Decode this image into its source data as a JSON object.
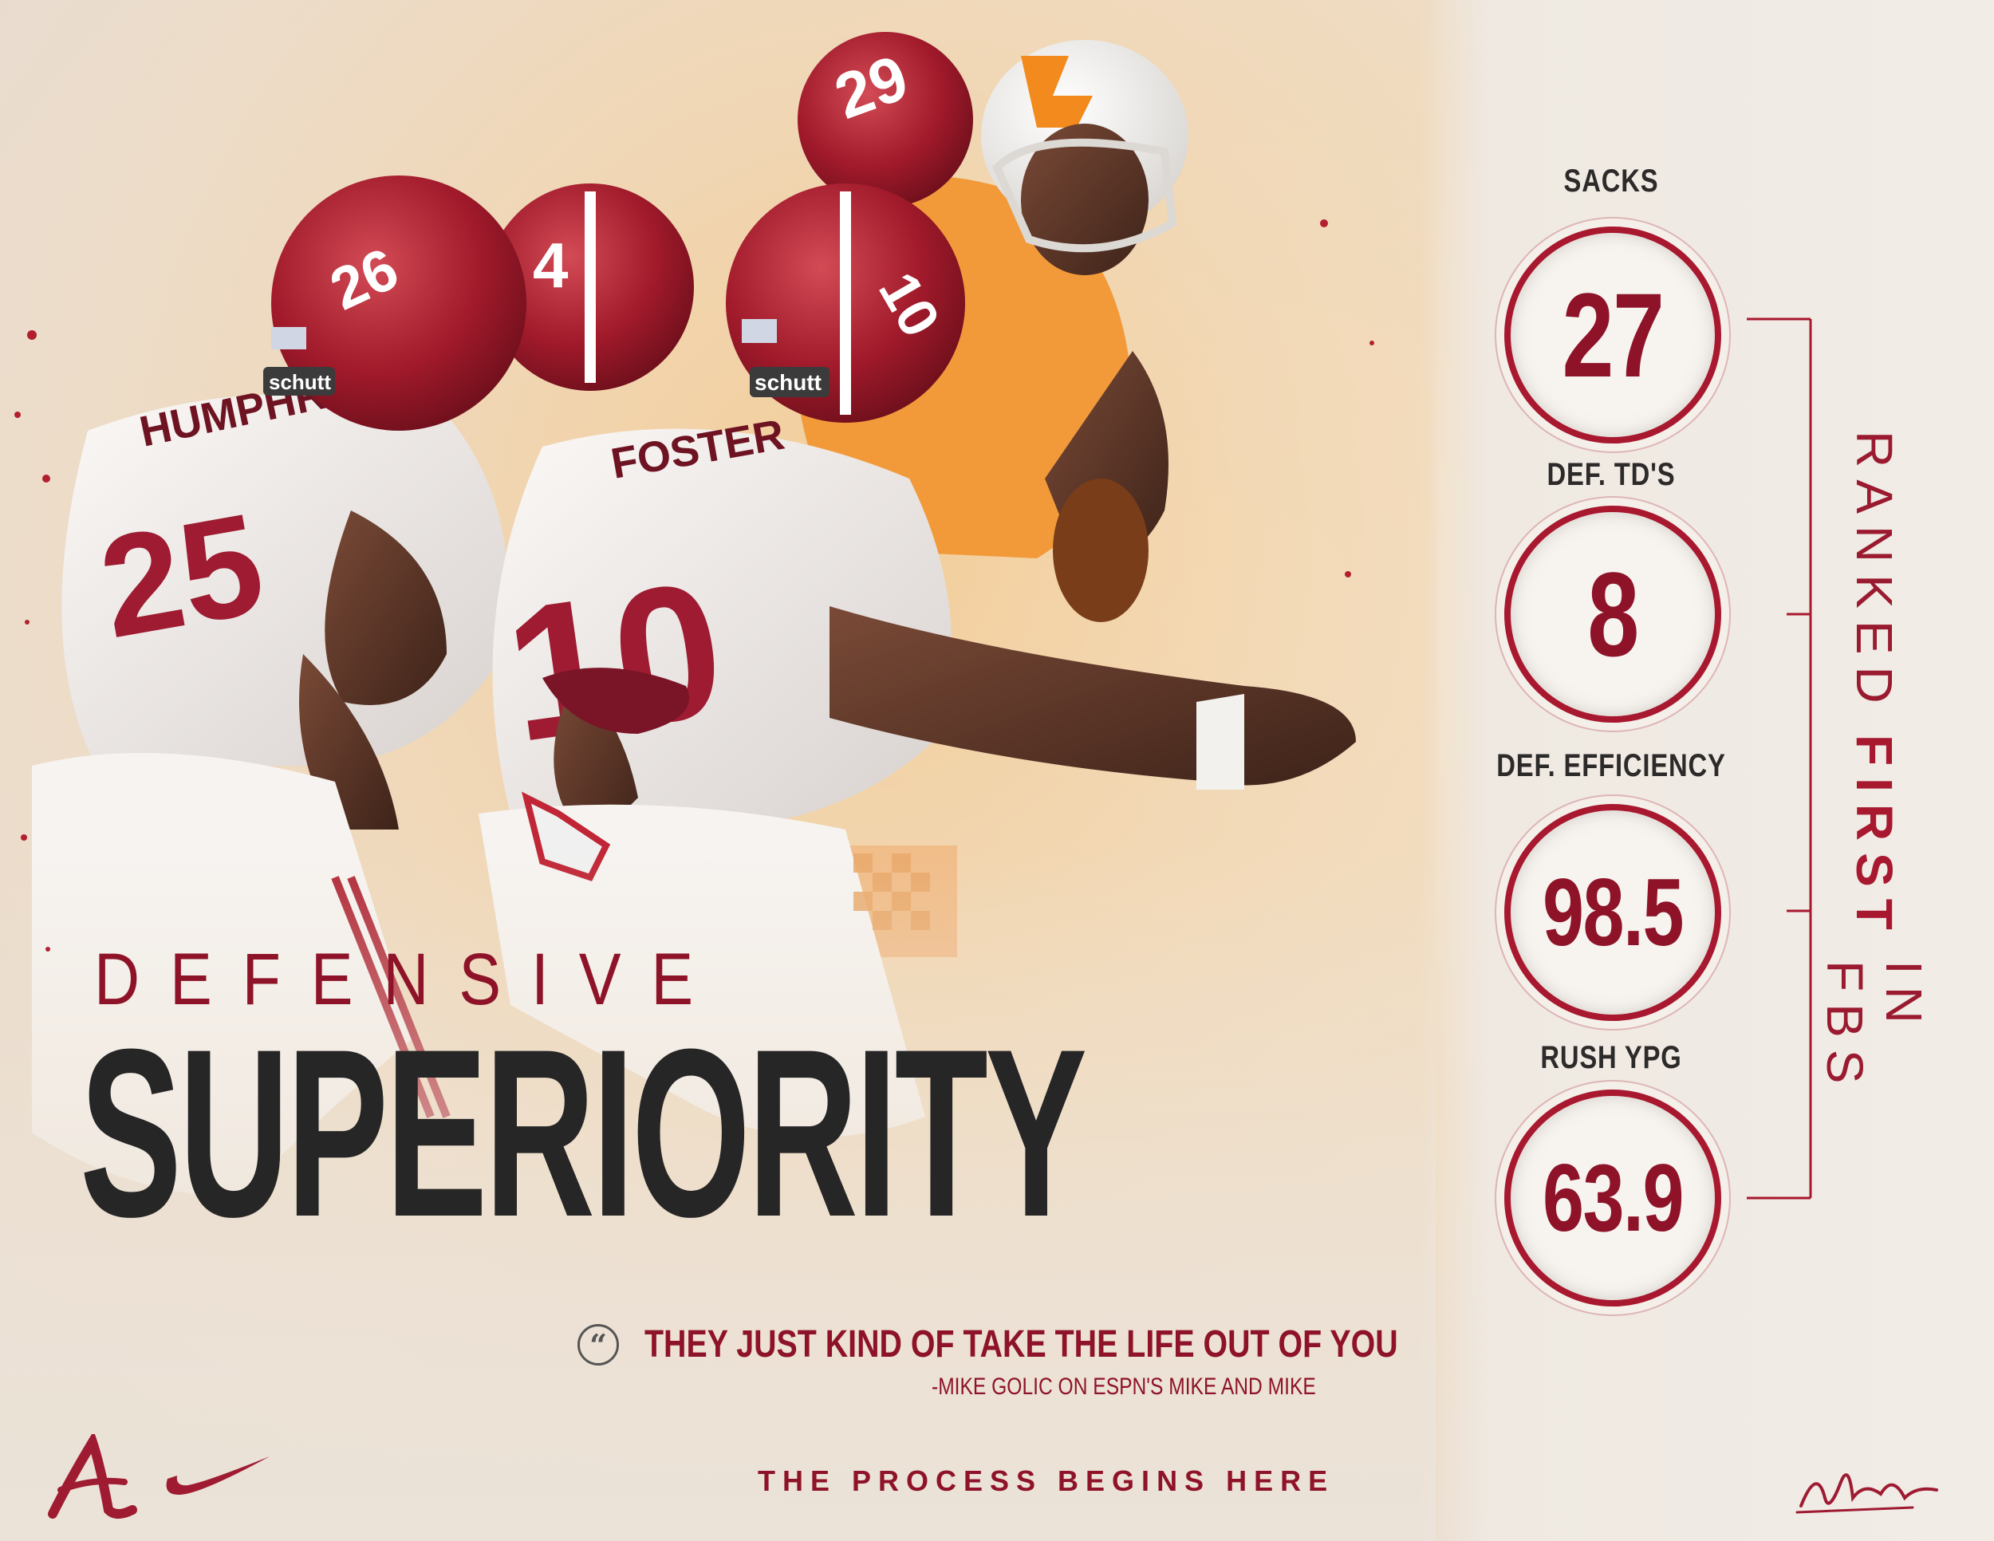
{
  "headline": {
    "top": "DEFENSIVE",
    "main": "SUPERIORITY"
  },
  "quote": {
    "text": "THEY JUST KIND OF TAKE THE LIFE OUT OF YOU",
    "source": "-MIKE GOLIC ON ESPN'S MIKE AND MIKE",
    "icon": "quote-icon"
  },
  "tagline": "THE PROCESS BEGINS HERE",
  "stats": [
    {
      "label": "SACKS",
      "value": "27"
    },
    {
      "label": "DEF. TD'S",
      "value": "8"
    },
    {
      "label": "DEF. EFFICIENCY",
      "value": "98.5"
    },
    {
      "label": "RUSH YPG",
      "value": "63.9"
    }
  ],
  "ranked": {
    "prefix": "RANKED",
    "accent": "FIRST",
    "suffix": "IN FBS"
  },
  "player_names": [
    "HUMPHREY",
    "FOSTER"
  ],
  "jersey_numbers": [
    "25",
    "10",
    "4",
    "26",
    "29"
  ],
  "helmet_brand": "schutt",
  "icons": [
    "alabama-a-logo",
    "nike-swoosh-logo",
    "signature",
    "quote-icon"
  ],
  "colors": {
    "crimson": "#9e1b32",
    "dark_text": "#262626",
    "background": "#f0e4d2",
    "tennessee_orange": "#f28a1e"
  }
}
